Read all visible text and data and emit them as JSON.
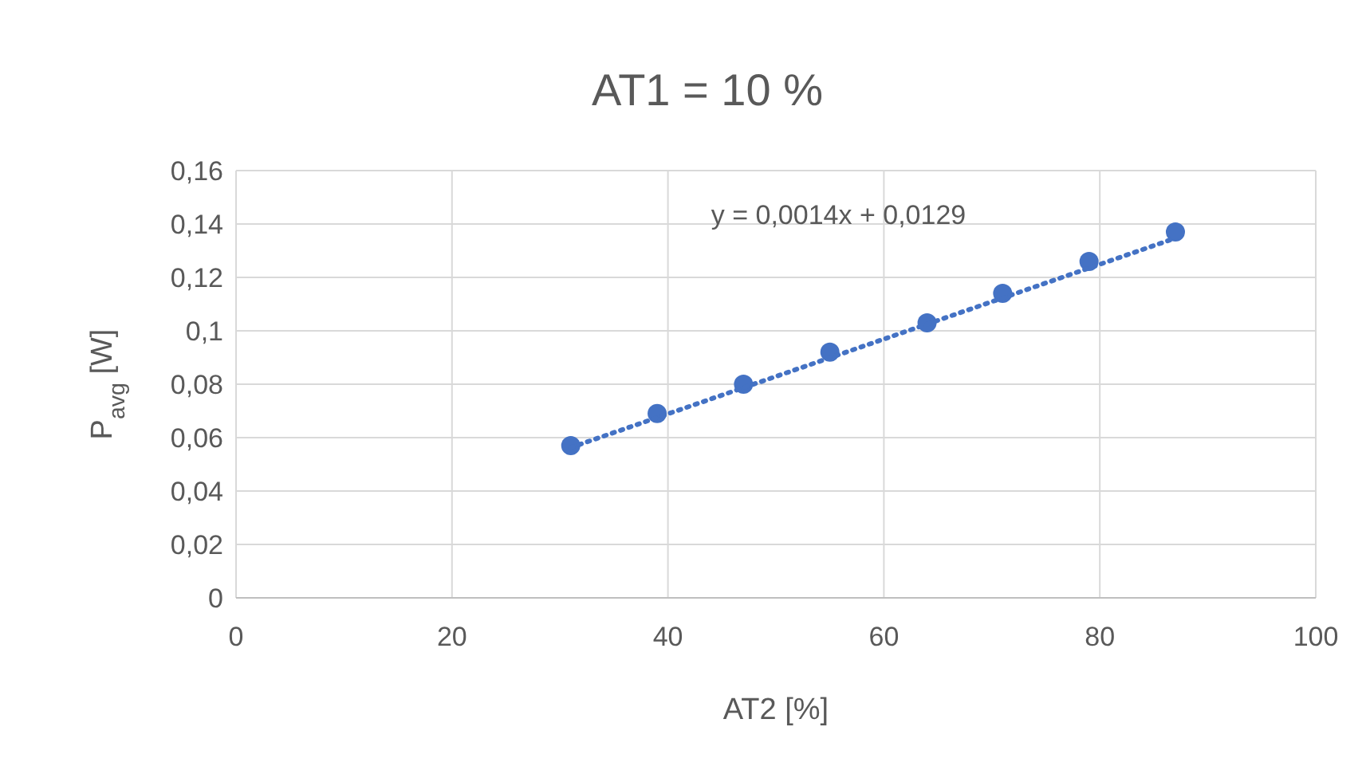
{
  "chart_data": {
    "type": "scatter",
    "title": "AT1 = 10 %",
    "xlabel": "AT2 [%]",
    "ylabel": "P$_{avg}$ [W]",
    "xlim": [
      0,
      100
    ],
    "xticks": [
      0,
      20,
      40,
      60,
      80,
      100
    ],
    "ylim": [
      0,
      0.16
    ],
    "yticks": [
      0,
      {
        "value": 0.02,
        "label": "0,02"
      },
      {
        "value": 0.04,
        "label": "0,04"
      },
      {
        "value": 0.06,
        "label": "0,06"
      },
      {
        "value": 0.08,
        "label": "0,08"
      },
      {
        "value": 0.1,
        "label": "0,1"
      },
      {
        "value": 0.12,
        "label": "0,12"
      },
      {
        "value": 0.14,
        "label": "0,14"
      },
      {
        "value": 0.16,
        "label": "0,16"
      }
    ],
    "grid": true,
    "series": [
      {
        "color": "#4472c4",
        "marker": "circle",
        "x": [
          31,
          39,
          47,
          55,
          64,
          71,
          79,
          87
        ],
        "values": [
          0.057,
          0.069,
          0.08,
          0.092,
          0.103,
          0.114,
          0.126,
          0.137
        ]
      },
      {
        "type": "line",
        "color": "#4472c4",
        "marker": "none",
        "line_style": "dotted",
        "x": [
          31,
          87
        ],
        "values": [
          0.0563,
          0.1347
        ]
      }
    ],
    "annotations": [
      "y = 0,0014x + 0,0129"
    ]
  }
}
